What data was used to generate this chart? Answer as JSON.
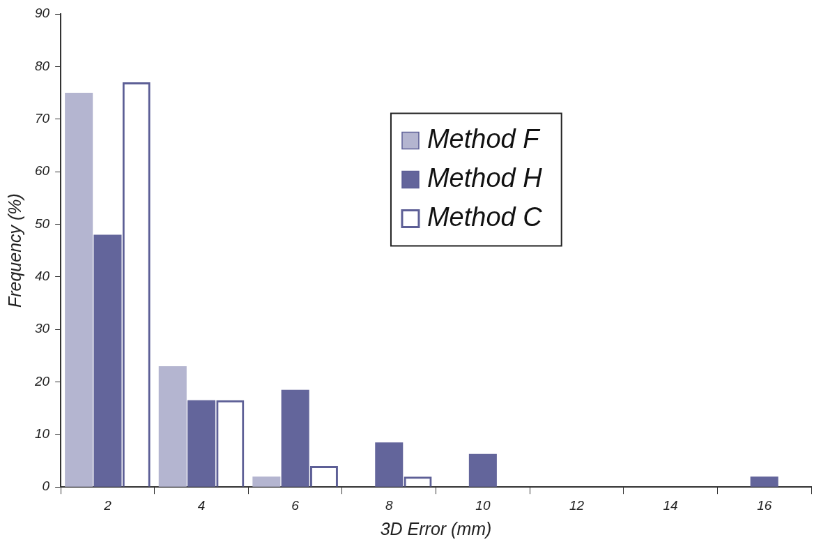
{
  "chart_data": {
    "type": "bar",
    "xlabel": "3D Error (mm)",
    "ylabel": "Frequency (%)",
    "categories": [
      "2",
      "4",
      "6",
      "8",
      "10",
      "12",
      "14",
      "16"
    ],
    "series": [
      {
        "name": "Method F",
        "color": "#b4b5d0",
        "values": [
          75,
          23,
          2,
          0,
          0,
          0,
          0,
          0
        ]
      },
      {
        "name": "Method H",
        "color": "#63659b",
        "values": [
          48,
          16.5,
          18.5,
          8.5,
          6.3,
          0,
          0,
          2
        ]
      },
      {
        "name": "Method C",
        "color": "#5d5f96",
        "values": [
          77,
          16.5,
          4,
          2,
          0,
          0,
          0,
          0
        ]
      }
    ],
    "ylim": [
      0,
      90
    ],
    "yticks": [
      0,
      10,
      20,
      30,
      40,
      50,
      60,
      70,
      80,
      90
    ],
    "grid": false,
    "legend": "top right"
  }
}
